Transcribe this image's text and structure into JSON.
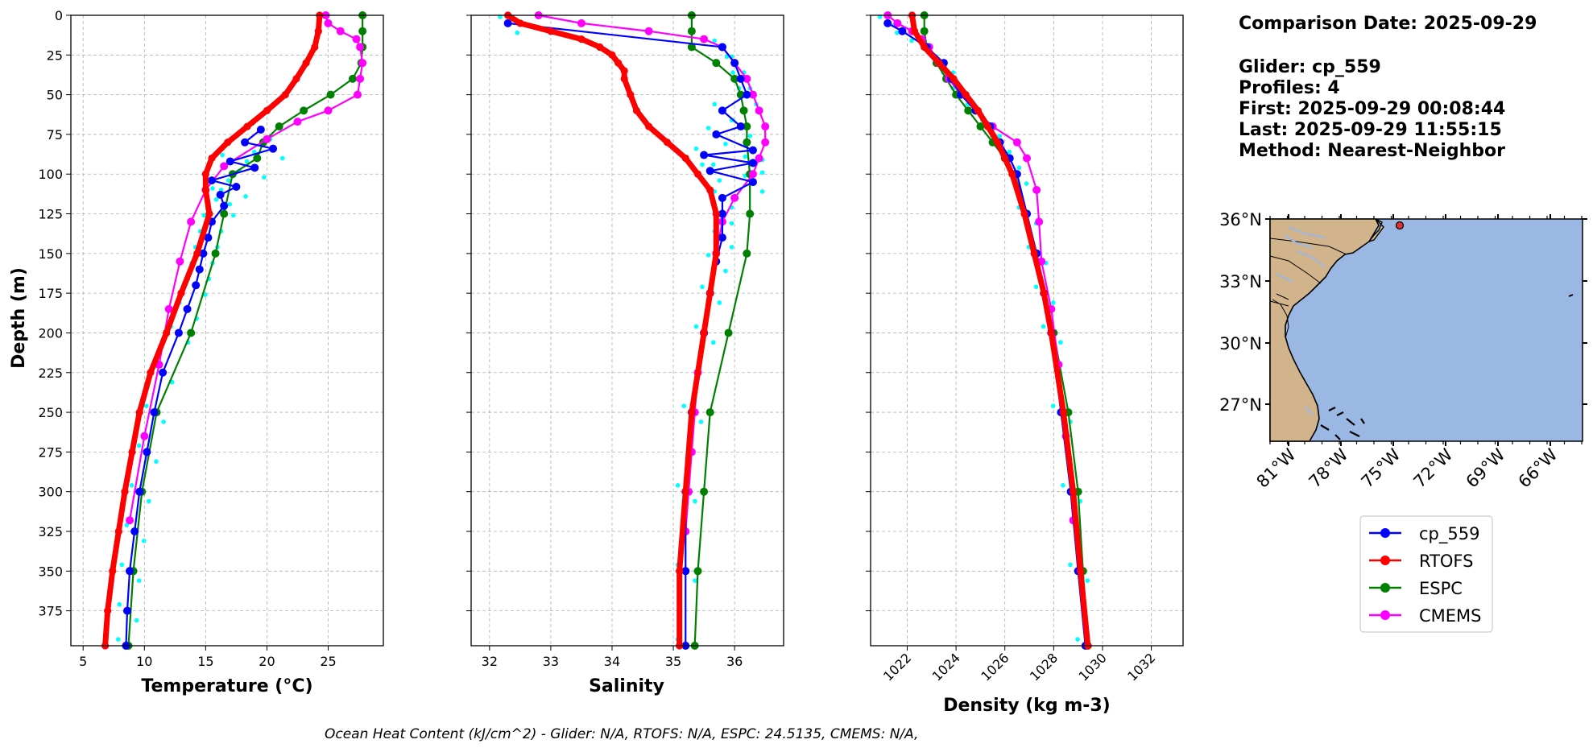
{
  "chart_data": [
    {
      "type": "line",
      "xlabel": "Temperature (°C)",
      "ylabel": "Depth (m)",
      "xlim": [
        4,
        29.5
      ],
      "ylim": [
        397,
        0
      ],
      "xticks": [
        5,
        10,
        15,
        20,
        25
      ],
      "yticks": [
        0,
        25,
        50,
        75,
        100,
        125,
        150,
        175,
        200,
        225,
        250,
        275,
        300,
        325,
        350,
        375
      ],
      "grid": true,
      "series": [
        {
          "name": "cp_559",
          "color": "#0000ff",
          "depths": [
            72,
            80,
            84,
            92,
            96,
            104,
            108,
            113,
            120,
            130,
            140,
            150,
            160,
            170,
            185,
            200,
            225,
            250,
            275,
            300,
            325,
            350,
            375,
            397
          ],
          "values": [
            19.5,
            18.2,
            20.5,
            17.0,
            19.0,
            15.5,
            17.5,
            16.2,
            16.5,
            15.5,
            15.2,
            14.8,
            14.5,
            14.2,
            13.5,
            12.8,
            11.5,
            10.8,
            10.2,
            9.6,
            9.2,
            8.8,
            8.6,
            8.5
          ]
        },
        {
          "name": "RTOFS",
          "color": "#ff0000",
          "depths": [
            0,
            10,
            20,
            30,
            40,
            50,
            60,
            70,
            80,
            90,
            100,
            110,
            125,
            150,
            175,
            200,
            225,
            250,
            275,
            300,
            325,
            350,
            375,
            397
          ],
          "values": [
            24.3,
            24.2,
            23.9,
            23.2,
            22.4,
            21.5,
            20.0,
            18.4,
            16.8,
            15.5,
            15.0,
            15.0,
            15.3,
            14.3,
            13.0,
            11.8,
            10.5,
            9.6,
            9.0,
            8.4,
            7.9,
            7.4,
            7.0,
            6.8
          ]
        },
        {
          "name": "ESPC",
          "color": "#008000",
          "depths": [
            0,
            10,
            20,
            30,
            40,
            50,
            60,
            70,
            80,
            90,
            100,
            125,
            150,
            200,
            250,
            300,
            350,
            397
          ],
          "values": [
            27.8,
            27.8,
            27.8,
            27.7,
            27.0,
            25.2,
            23.0,
            21.0,
            19.7,
            19.2,
            17.2,
            16.5,
            15.8,
            13.8,
            11.0,
            9.8,
            9.1,
            8.7
          ]
        },
        {
          "name": "CMEMS",
          "color": "#ff00ff",
          "depths": [
            0,
            5,
            10,
            15,
            20,
            30,
            40,
            50,
            60,
            67,
            78,
            95,
            110,
            130,
            155,
            185,
            220,
            265,
            318
          ],
          "values": [
            24.8,
            25.0,
            26.0,
            27.3,
            27.6,
            27.8,
            27.6,
            27.4,
            25.0,
            22.5,
            20.0,
            16.5,
            15.0,
            13.8,
            12.9,
            12.0,
            11.2,
            10.0,
            8.8
          ]
        }
      ]
    },
    {
      "type": "line",
      "xlabel": "Salinity",
      "xlim": [
        31.7,
        36.8
      ],
      "ylim": [
        397,
        0
      ],
      "xticks": [
        32,
        33,
        34,
        35,
        36
      ],
      "grid": true,
      "series": [
        {
          "name": "cp_559",
          "color": "#0000ff",
          "depths": [
            5,
            20,
            30,
            40,
            50,
            60,
            70,
            75,
            85,
            88,
            93,
            98,
            105,
            115,
            125,
            140,
            155,
            175,
            200,
            250,
            300,
            350,
            397
          ],
          "values": [
            32.3,
            35.8,
            36.0,
            36.1,
            36.2,
            35.8,
            36.1,
            35.7,
            36.3,
            35.5,
            36.3,
            35.6,
            36.3,
            35.8,
            35.8,
            35.8,
            35.7,
            35.6,
            35.5,
            35.3,
            35.2,
            35.2,
            35.2
          ]
        },
        {
          "name": "RTOFS",
          "color": "#ff0000",
          "depths": [
            0,
            5,
            10,
            15,
            20,
            25,
            30,
            35,
            40,
            50,
            60,
            70,
            80,
            90,
            100,
            110,
            125,
            150,
            175,
            200,
            250,
            300,
            350,
            397
          ],
          "values": [
            32.3,
            32.5,
            33.0,
            33.5,
            33.8,
            34.0,
            34.1,
            34.2,
            34.2,
            34.3,
            34.4,
            34.6,
            34.9,
            35.2,
            35.4,
            35.6,
            35.7,
            35.7,
            35.6,
            35.5,
            35.3,
            35.2,
            35.1,
            35.1
          ]
        },
        {
          "name": "ESPC",
          "color": "#008000",
          "depths": [
            0,
            10,
            20,
            30,
            40,
            50,
            60,
            70,
            80,
            100,
            125,
            150,
            200,
            250,
            300,
            350,
            397
          ],
          "values": [
            35.3,
            35.3,
            35.3,
            35.7,
            36.0,
            36.1,
            36.15,
            36.2,
            36.2,
            36.25,
            36.25,
            36.2,
            35.9,
            35.6,
            35.5,
            35.4,
            35.35
          ]
        },
        {
          "name": "CMEMS",
          "color": "#ff00ff",
          "depths": [
            0,
            5,
            10,
            15,
            20,
            30,
            40,
            50,
            60,
            70,
            80,
            90,
            100,
            115,
            130,
            150,
            175,
            200,
            225,
            250,
            275,
            300,
            325
          ],
          "values": [
            32.8,
            33.5,
            34.6,
            35.5,
            35.8,
            36.0,
            36.2,
            36.3,
            36.4,
            36.5,
            36.5,
            36.4,
            36.3,
            36.0,
            35.8,
            35.7,
            35.6,
            35.5,
            35.4,
            35.35,
            35.3,
            35.25,
            35.2
          ]
        }
      ]
    },
    {
      "type": "line",
      "xlabel": "Density (kg m-3)",
      "xlim": [
        1020.5,
        1033.3
      ],
      "ylim": [
        397,
        0
      ],
      "xticks": [
        1022,
        1024,
        1026,
        1028,
        1030,
        1032
      ],
      "grid": true,
      "series": [
        {
          "name": "cp_559",
          "color": "#0000ff",
          "depths": [
            5,
            10,
            20,
            30,
            40,
            50,
            60,
            70,
            80,
            90,
            100,
            125,
            150,
            175,
            200,
            250,
            300,
            350,
            397
          ],
          "values": [
            1021.2,
            1021.8,
            1022.8,
            1023.5,
            1023.8,
            1024.2,
            1024.8,
            1025.4,
            1025.8,
            1026.2,
            1026.5,
            1026.9,
            1027.3,
            1027.6,
            1027.9,
            1028.3,
            1028.7,
            1029.0,
            1029.3
          ]
        },
        {
          "name": "RTOFS",
          "color": "#ff0000",
          "depths": [
            0,
            10,
            20,
            30,
            40,
            50,
            60,
            70,
            80,
            90,
            100,
            125,
            150,
            175,
            200,
            250,
            300,
            350,
            397
          ],
          "values": [
            1022.2,
            1022.3,
            1022.7,
            1023.3,
            1023.9,
            1024.4,
            1024.9,
            1025.3,
            1025.7,
            1026.0,
            1026.3,
            1026.8,
            1027.2,
            1027.6,
            1027.9,
            1028.4,
            1028.8,
            1029.1,
            1029.4
          ]
        },
        {
          "name": "ESPC",
          "color": "#008000",
          "depths": [
            0,
            10,
            20,
            30,
            40,
            50,
            60,
            70,
            80,
            90,
            100,
            125,
            150,
            200,
            250,
            300,
            350,
            397
          ],
          "values": [
            1022.7,
            1022.7,
            1022.8,
            1023.2,
            1023.6,
            1024.0,
            1024.5,
            1025.0,
            1025.5,
            1026.0,
            1026.4,
            1026.9,
            1027.3,
            1028.0,
            1028.6,
            1029.0,
            1029.2,
            1029.4
          ]
        },
        {
          "name": "CMEMS",
          "color": "#ff00ff",
          "depths": [
            0,
            5,
            10,
            15,
            20,
            30,
            40,
            50,
            60,
            70,
            80,
            90,
            110,
            130,
            155,
            185,
            220,
            265,
            318
          ],
          "values": [
            1021.2,
            1021.6,
            1022.2,
            1022.6,
            1022.9,
            1023.3,
            1023.7,
            1024.2,
            1024.8,
            1025.5,
            1026.5,
            1026.9,
            1027.3,
            1027.4,
            1027.5,
            1027.9,
            1028.2,
            1028.5,
            1028.8
          ]
        }
      ]
    }
  ],
  "info": {
    "date_line": "Comparison Date: 2025-09-29",
    "glider_line": "Glider: cp_559",
    "profiles_line": "Profiles: 4",
    "first_line": "First: 2025-09-29 00:08:44",
    "last_line": "Last: 2025-09-29 11:55:15",
    "method_line": "Method: Nearest-Neighbor"
  },
  "map": {
    "lat_labels": [
      "36°N",
      "33°N",
      "30°N",
      "27°N"
    ],
    "lon_labels": [
      "81°W",
      "78°W",
      "75°W",
      "72°W",
      "69°W",
      "66°W"
    ],
    "land_color": "#d2b48c",
    "ocean_color": "#9ab8e3",
    "marker_color": "#e03030"
  },
  "legend": [
    {
      "label": "cp_559",
      "color": "#0000ff"
    },
    {
      "label": "RTOFS",
      "color": "#ff0000"
    },
    {
      "label": "ESPC",
      "color": "#008000"
    },
    {
      "label": "CMEMS",
      "color": "#ff00ff"
    }
  ],
  "footer": "Ocean Heat Content (kJ/cm^2) - Glider: N/A,  RTOFS: N/A,  ESPC: 24.5135,  CMEMS: N/A,"
}
